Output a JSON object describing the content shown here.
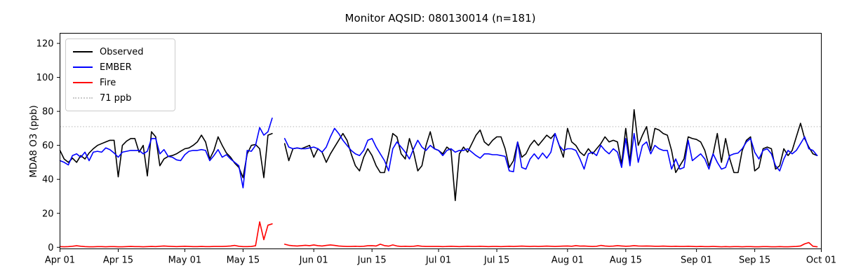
{
  "chart_data": {
    "type": "line",
    "title": "Monitor AQSID: 080130014 (n=181)",
    "ylabel": "MDA8 O3 (ppb)",
    "n_points": 181,
    "x_range_days": 183,
    "x_start": "Apr 01",
    "x_end": "Oct 01",
    "ylim": [
      -0.7,
      126.2
    ],
    "grid": false,
    "legend_position": "upper left",
    "x_ticks": [
      {
        "label": "Apr 01",
        "day": 0
      },
      {
        "label": "Apr 15",
        "day": 14
      },
      {
        "label": "May 01",
        "day": 30
      },
      {
        "label": "May 15",
        "day": 44
      },
      {
        "label": "Jun 01",
        "day": 61
      },
      {
        "label": "Jun 15",
        "day": 75
      },
      {
        "label": "Jul 01",
        "day": 91
      },
      {
        "label": "Jul 15",
        "day": 105
      },
      {
        "label": "Aug 01",
        "day": 122
      },
      {
        "label": "Aug 15",
        "day": 136
      },
      {
        "label": "Sep 01",
        "day": 153
      },
      {
        "label": "Sep 15",
        "day": 167
      },
      {
        "label": "Oct 01",
        "day": 183
      }
    ],
    "y_ticks": [
      0,
      20,
      40,
      60,
      80,
      100,
      120
    ],
    "threshold": {
      "label": "71 ppb",
      "value": 71,
      "color": "#c9c9c9",
      "style": "dotted"
    },
    "series": [
      {
        "name": "Observed",
        "color": "#000000",
        "values": [
          57,
          52,
          50,
          52.5,
          50,
          54,
          52,
          55.5,
          58,
          60,
          61,
          62,
          63,
          63,
          41.5,
          60,
          62.5,
          64,
          64,
          56,
          60,
          42,
          68,
          65,
          48,
          52,
          53.5,
          54,
          55,
          56.5,
          58,
          58.5,
          60,
          62,
          66,
          62,
          52,
          57,
          65,
          60,
          55.5,
          53,
          49.5,
          47,
          41,
          55,
          60,
          60.5,
          58,
          41,
          66,
          67,
          null,
          null,
          61,
          51,
          58,
          58.5,
          58,
          59,
          60,
          53,
          58,
          56,
          50,
          55,
          59,
          63,
          67,
          63,
          55,
          48,
          45,
          53,
          58,
          54,
          48,
          44,
          44,
          55,
          67,
          65,
          55,
          52,
          64,
          56,
          45,
          48,
          60,
          68,
          58,
          57,
          55,
          59,
          57,
          27.5,
          55,
          59,
          56,
          61,
          66,
          69,
          62,
          60,
          63,
          65,
          65,
          58,
          47,
          51,
          62,
          53,
          55,
          60,
          63,
          60,
          63,
          66,
          64,
          67,
          60,
          53,
          70,
          62,
          60,
          56,
          54,
          58,
          55,
          58,
          61,
          65,
          62,
          63,
          62,
          49,
          70,
          50,
          81,
          60,
          66,
          71,
          57,
          70,
          69,
          67,
          66,
          57,
          44,
          48,
          52,
          65,
          64,
          63.5,
          62,
          57,
          48,
          55,
          67,
          50,
          64,
          52,
          44,
          44,
          57,
          63,
          65,
          45,
          47,
          58,
          59,
          58,
          46,
          48,
          58,
          54,
          57,
          65,
          73,
          64,
          59,
          55,
          54
        ]
      },
      {
        "name": "EMBER",
        "color": "#0000ff",
        "values": [
          51,
          50,
          48.5,
          54,
          55,
          53,
          56,
          51,
          56,
          56.5,
          56,
          58.5,
          57.5,
          55.5,
          53,
          56,
          56.5,
          57,
          57,
          57,
          55,
          56.5,
          64,
          64,
          55,
          57.5,
          53.5,
          53,
          51.5,
          51,
          54.5,
          56.5,
          57,
          57,
          57.5,
          57,
          51,
          54,
          57.5,
          53,
          54.5,
          52,
          50,
          48,
          35,
          57,
          56.5,
          60,
          70.5,
          66,
          68,
          76,
          null,
          null,
          64,
          59,
          58,
          58.5,
          58,
          58,
          58.5,
          59,
          58,
          56,
          59,
          65,
          70,
          67,
          63,
          60,
          57,
          55,
          54,
          57,
          63,
          64,
          59,
          55,
          51,
          45,
          58,
          62,
          59,
          56,
          52,
          58,
          63,
          59,
          57,
          60,
          58,
          57,
          54,
          57,
          58,
          56,
          57,
          57,
          58,
          56,
          54,
          52.5,
          55,
          55,
          54.5,
          54.5,
          54,
          53.5,
          45,
          44.5,
          62,
          47,
          46,
          52,
          55,
          52,
          55.5,
          52.5,
          56,
          67,
          60,
          57,
          58,
          58,
          57,
          52,
          46,
          55,
          56,
          54,
          60,
          57,
          55,
          58,
          56,
          47,
          64,
          48,
          67,
          50,
          60,
          62,
          55,
          60,
          58,
          57,
          57,
          46,
          52,
          46,
          47,
          63,
          51,
          53,
          55,
          52,
          46,
          55,
          50,
          46,
          47,
          54,
          55,
          55.5,
          58,
          62,
          64,
          56,
          52,
          57,
          58,
          55,
          48,
          45,
          52,
          57,
          55,
          57,
          61,
          65,
          58,
          57,
          54
        ]
      },
      {
        "name": "Fire",
        "color": "#ff0000",
        "values": [
          0.4,
          0.3,
          0.4,
          0.6,
          0.9,
          0.6,
          0.4,
          0.3,
          0.3,
          0.4,
          0.4,
          0.3,
          0.4,
          0.4,
          0.3,
          0.3,
          0.4,
          0.5,
          0.4,
          0.4,
          0.3,
          0.4,
          0.5,
          0.4,
          0.6,
          0.8,
          0.6,
          0.5,
          0.4,
          0.5,
          0.6,
          0.5,
          0.4,
          0.4,
          0.5,
          0.4,
          0.4,
          0.5,
          0.5,
          0.5,
          0.6,
          0.8,
          1.1,
          0.6,
          0.4,
          0.4,
          0.5,
          0.9,
          15,
          4.5,
          13,
          13.8,
          null,
          null,
          1.8,
          1.2,
          0.9,
          0.8,
          1,
          1.2,
          1,
          1.4,
          1,
          0.8,
          1.1,
          1.4,
          1.1,
          0.8,
          0.6,
          0.5,
          0.5,
          0.6,
          0.5,
          0.6,
          0.9,
          1,
          0.8,
          1.8,
          1,
          0.7,
          1.4,
          0.8,
          0.5,
          0.6,
          0.5,
          0.6,
          0.9,
          0.6,
          0.5,
          0.5,
          0.5,
          0.5,
          0.4,
          0.5,
          0.6,
          0.5,
          0.4,
          0.5,
          0.6,
          0.5,
          0.5,
          0.6,
          0.5,
          0.4,
          0.5,
          0.5,
          0.4,
          0.5,
          0.6,
          0.5,
          0.6,
          0.7,
          0.6,
          0.5,
          0.6,
          0.5,
          0.6,
          0.7,
          0.6,
          0.5,
          0.6,
          0.7,
          0.8,
          0.6,
          1,
          0.7,
          0.8,
          0.6,
          0.5,
          0.6,
          1.1,
          0.8,
          0.6,
          0.7,
          1,
          0.8,
          0.6,
          0.7,
          1,
          0.8,
          0.7,
          0.8,
          0.7,
          0.6,
          0.6,
          0.7,
          0.6,
          0.5,
          0.6,
          0.5,
          0.5,
          0.6,
          0.5,
          0.4,
          0.5,
          0.4,
          0.4,
          0.5,
          0.4,
          0.3,
          0.4,
          0.3,
          0.4,
          0.4,
          0.3,
          0.4,
          0.4,
          0.3,
          0.3,
          0.4,
          0.4,
          0.3,
          0.3,
          0.4,
          0.3,
          0.3,
          0.4,
          0.5,
          0.8,
          2,
          2.8,
          0.6,
          0.3
        ]
      }
    ]
  }
}
